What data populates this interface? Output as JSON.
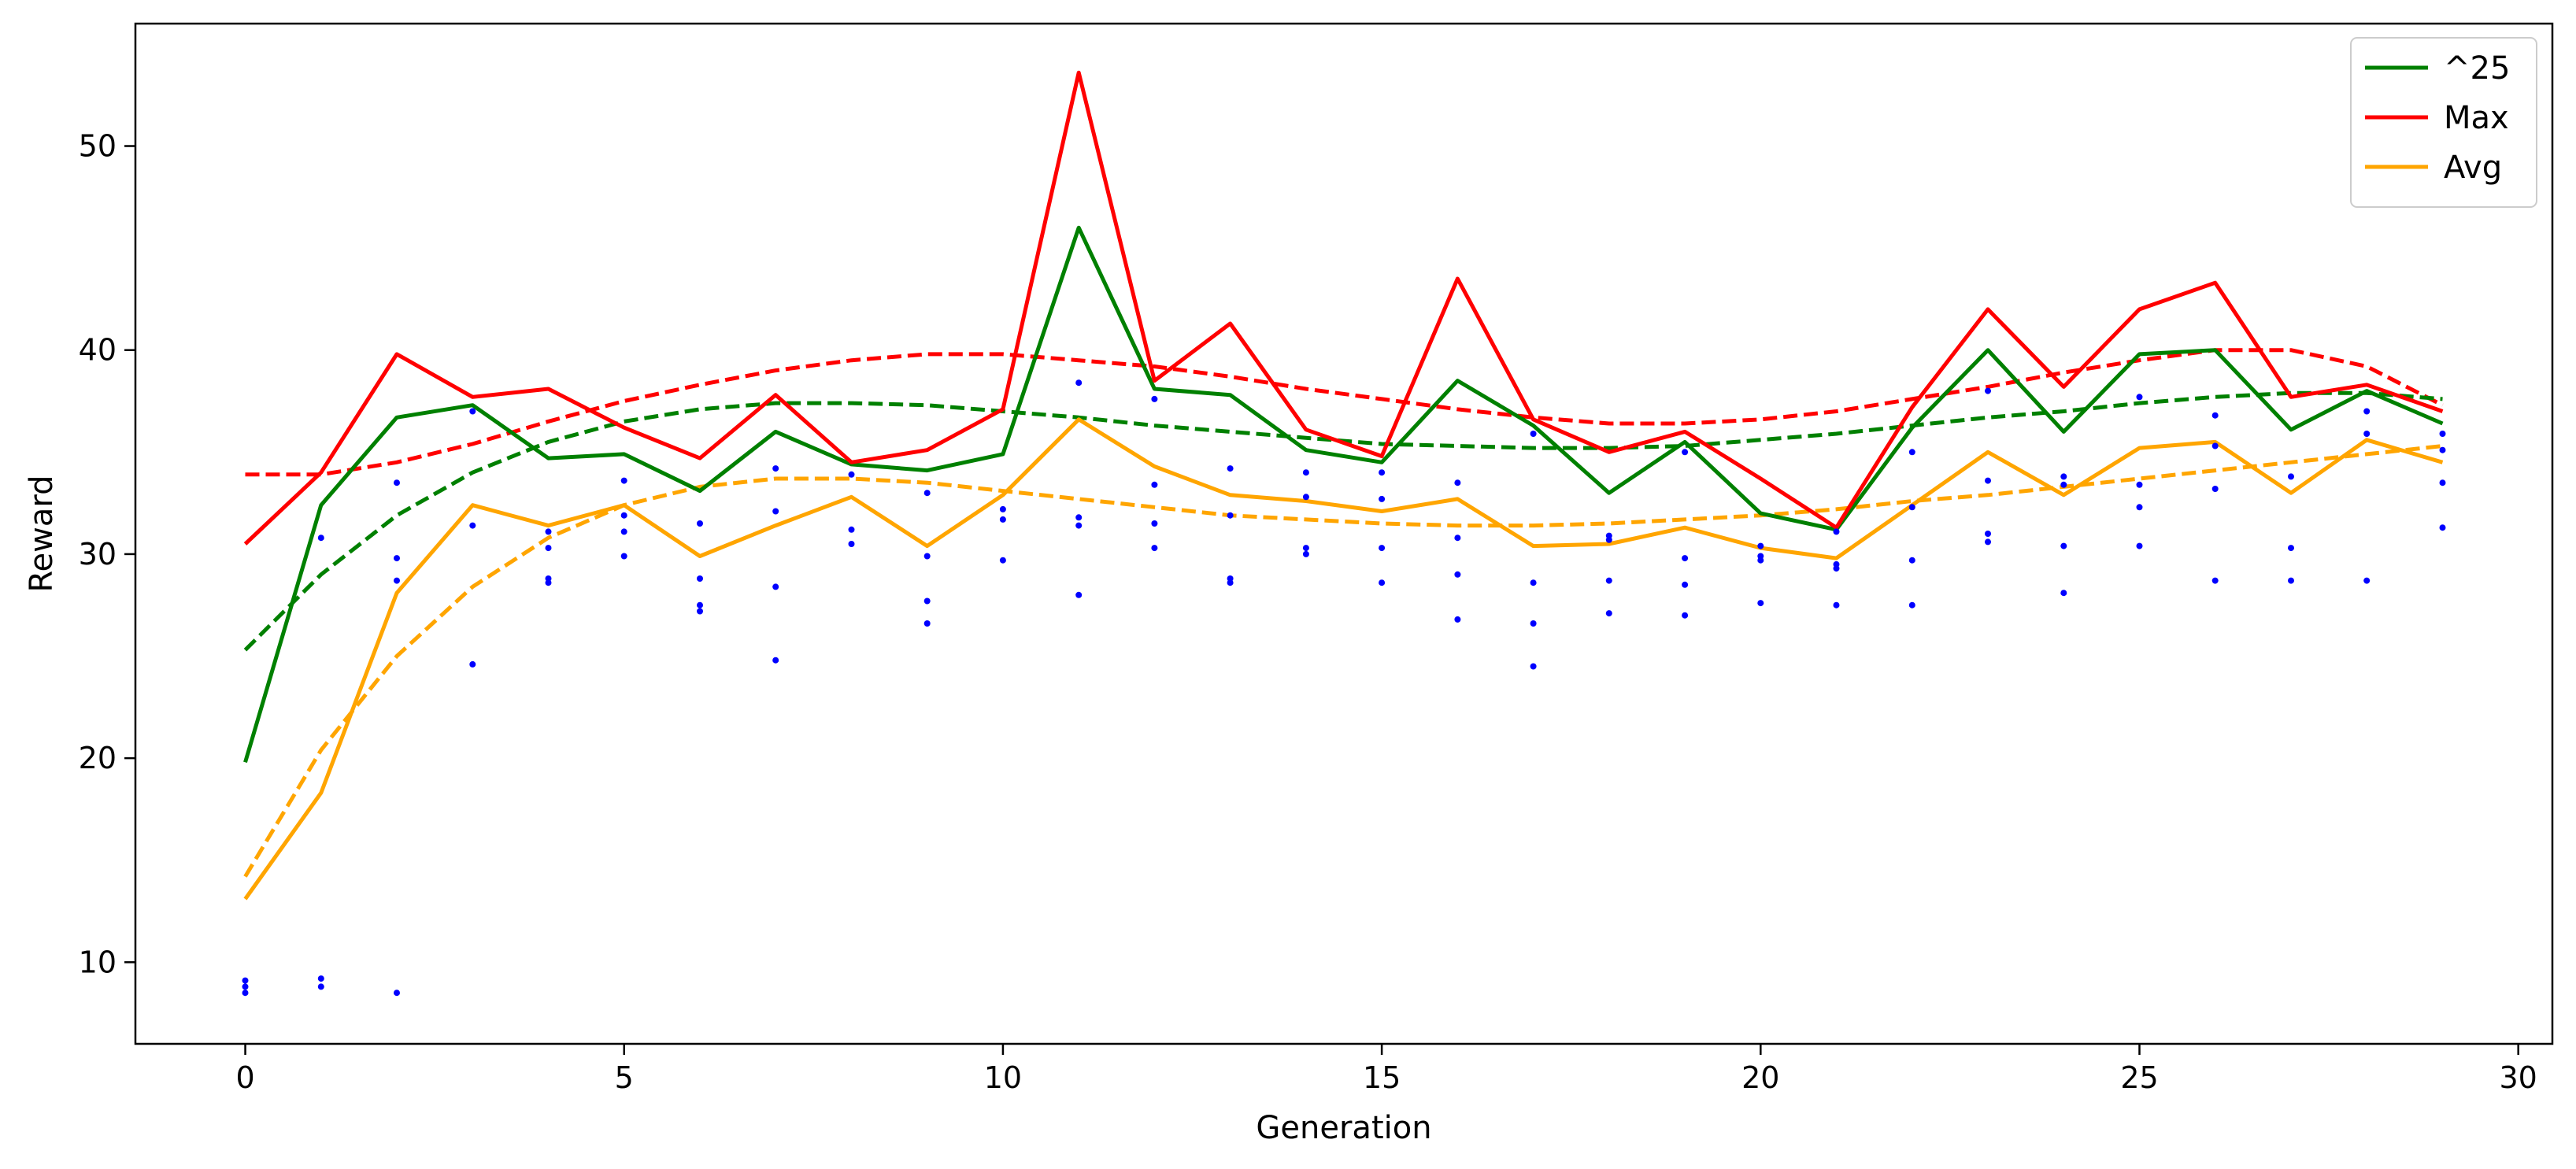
{
  "chart_data": {
    "type": "line",
    "xlabel": "Generation",
    "ylabel": "Reward",
    "xlim": [
      -1.45,
      30.45
    ],
    "ylim": [
      6.0,
      56.0
    ],
    "xticks": [
      0,
      5,
      10,
      15,
      20,
      25,
      30
    ],
    "yticks": [
      10,
      20,
      30,
      40,
      50
    ],
    "grid": false,
    "legend_position": "top-right",
    "x": [
      0,
      1,
      2,
      3,
      4,
      5,
      6,
      7,
      8,
      9,
      10,
      11,
      12,
      13,
      14,
      15,
      16,
      17,
      18,
      19,
      20,
      21,
      22,
      23,
      24,
      25,
      26,
      27,
      28,
      29
    ],
    "series": [
      {
        "name": "^25",
        "color": "#008000",
        "style": "solid",
        "values": [
          19.8,
          32.4,
          36.7,
          37.3,
          34.7,
          34.9,
          33.1,
          36.0,
          34.4,
          34.1,
          34.9,
          46.0,
          38.1,
          37.8,
          35.1,
          34.5,
          38.5,
          36.3,
          33.0,
          35.5,
          32.0,
          31.2,
          36.2,
          40.0,
          36.0,
          39.8,
          40.0,
          36.1,
          38.0,
          36.4
        ]
      },
      {
        "name": "Max",
        "color": "#ff0000",
        "style": "solid",
        "values": [
          30.5,
          34.0,
          39.8,
          37.7,
          38.1,
          36.2,
          34.7,
          37.8,
          34.5,
          35.1,
          37.1,
          53.6,
          38.5,
          41.3,
          36.1,
          34.8,
          43.5,
          36.6,
          35.0,
          36.0,
          33.7,
          31.3,
          37.2,
          42.0,
          38.2,
          42.0,
          43.3,
          37.7,
          38.3,
          37.0
        ]
      },
      {
        "name": "Avg",
        "color": "#ffa500",
        "style": "solid",
        "values": [
          13.1,
          18.3,
          28.1,
          32.4,
          31.4,
          32.4,
          29.9,
          31.4,
          32.8,
          30.4,
          32.9,
          36.6,
          34.3,
          32.9,
          32.6,
          32.1,
          32.7,
          30.4,
          30.5,
          31.3,
          30.3,
          29.8,
          32.4,
          35.0,
          32.9,
          35.2,
          35.5,
          33.0,
          35.6,
          34.5
        ]
      },
      {
        "name": "",
        "color": "#ff0000",
        "style": "dashed",
        "values": [
          33.9,
          33.9,
          34.5,
          35.4,
          36.5,
          37.5,
          38.3,
          39.0,
          39.5,
          39.8,
          39.8,
          39.5,
          39.2,
          38.7,
          38.1,
          37.6,
          37.1,
          36.7,
          36.4,
          36.4,
          36.6,
          37.0,
          37.6,
          38.2,
          38.9,
          39.5,
          40.0,
          40.0,
          39.2,
          37.3
        ]
      },
      {
        "name": "",
        "color": "#008000",
        "style": "dashed",
        "values": [
          25.3,
          29.0,
          31.9,
          34.0,
          35.5,
          36.5,
          37.1,
          37.4,
          37.4,
          37.3,
          37.0,
          36.7,
          36.3,
          36.0,
          35.7,
          35.4,
          35.3,
          35.2,
          35.2,
          35.3,
          35.6,
          35.9,
          36.3,
          36.7,
          37.0,
          37.4,
          37.7,
          37.9,
          37.9,
          37.6
        ]
      },
      {
        "name": "",
        "color": "#ffa500",
        "style": "dashed",
        "values": [
          14.2,
          20.4,
          25.0,
          28.4,
          30.8,
          32.4,
          33.3,
          33.7,
          33.7,
          33.5,
          33.1,
          32.7,
          32.3,
          31.9,
          31.7,
          31.5,
          31.4,
          31.4,
          31.5,
          31.7,
          31.9,
          32.2,
          32.6,
          32.9,
          33.3,
          33.7,
          34.1,
          34.5,
          34.9,
          35.3
        ]
      }
    ],
    "scatter": {
      "color": "#0000ff",
      "points": [
        [
          0,
          9.1
        ],
        [
          0,
          8.8
        ],
        [
          0,
          8.5
        ],
        [
          1,
          30.8
        ],
        [
          1,
          9.2
        ],
        [
          1,
          8.8
        ],
        [
          2,
          33.5
        ],
        [
          2,
          29.8
        ],
        [
          2,
          28.7
        ],
        [
          2,
          8.5
        ],
        [
          3,
          37.0
        ],
        [
          3,
          31.4
        ],
        [
          3,
          24.6
        ],
        [
          4,
          31.1
        ],
        [
          4,
          30.3
        ],
        [
          4,
          28.8
        ],
        [
          4,
          28.6
        ],
        [
          5,
          33.6
        ],
        [
          5,
          31.9
        ],
        [
          5,
          31.1
        ],
        [
          5,
          29.9
        ],
        [
          6,
          31.5
        ],
        [
          6,
          28.8
        ],
        [
          6,
          27.5
        ],
        [
          6,
          27.2
        ],
        [
          7,
          34.2
        ],
        [
          7,
          32.1
        ],
        [
          7,
          28.4
        ],
        [
          7,
          24.8
        ],
        [
          8,
          33.9
        ],
        [
          8,
          31.2
        ],
        [
          8,
          30.5
        ],
        [
          9,
          33.0
        ],
        [
          9,
          29.9
        ],
        [
          9,
          27.7
        ],
        [
          9,
          26.6
        ],
        [
          10,
          32.2
        ],
        [
          10,
          31.7
        ],
        [
          10,
          29.7
        ],
        [
          11,
          38.4
        ],
        [
          11,
          31.8
        ],
        [
          11,
          31.4
        ],
        [
          11,
          28.0
        ],
        [
          12,
          37.6
        ],
        [
          12,
          33.4
        ],
        [
          12,
          31.5
        ],
        [
          12,
          30.3
        ],
        [
          13,
          34.2
        ],
        [
          13,
          31.9
        ],
        [
          13,
          28.8
        ],
        [
          13,
          28.6
        ],
        [
          14,
          34.0
        ],
        [
          14,
          32.8
        ],
        [
          14,
          30.3
        ],
        [
          14,
          30.0
        ],
        [
          15,
          34.0
        ],
        [
          15,
          32.7
        ],
        [
          15,
          30.3
        ],
        [
          15,
          28.6
        ],
        [
          16,
          33.5
        ],
        [
          16,
          30.8
        ],
        [
          16,
          29.0
        ],
        [
          16,
          26.8
        ],
        [
          17,
          35.9
        ],
        [
          17,
          28.6
        ],
        [
          17,
          26.6
        ],
        [
          17,
          24.5
        ],
        [
          18,
          30.9
        ],
        [
          18,
          30.7
        ],
        [
          18,
          28.7
        ],
        [
          18,
          27.1
        ],
        [
          19,
          35.0
        ],
        [
          19,
          29.8
        ],
        [
          19,
          28.5
        ],
        [
          19,
          27.0
        ],
        [
          20,
          30.4
        ],
        [
          20,
          29.9
        ],
        [
          20,
          29.7
        ],
        [
          20,
          27.6
        ],
        [
          21,
          31.1
        ],
        [
          21,
          29.5
        ],
        [
          21,
          29.3
        ],
        [
          21,
          27.5
        ],
        [
          22,
          35.0
        ],
        [
          22,
          32.3
        ],
        [
          22,
          29.7
        ],
        [
          22,
          27.5
        ],
        [
          23,
          38.0
        ],
        [
          23,
          33.6
        ],
        [
          23,
          31.0
        ],
        [
          23,
          30.6
        ],
        [
          24,
          33.8
        ],
        [
          24,
          33.4
        ],
        [
          24,
          30.4
        ],
        [
          24,
          28.1
        ],
        [
          25,
          37.7
        ],
        [
          25,
          33.4
        ],
        [
          25,
          32.3
        ],
        [
          25,
          30.4
        ],
        [
          26,
          36.8
        ],
        [
          26,
          35.3
        ],
        [
          26,
          33.2
        ],
        [
          26,
          28.7
        ],
        [
          27,
          33.8
        ],
        [
          27,
          30.3
        ],
        [
          27,
          28.7
        ],
        [
          28,
          37.0
        ],
        [
          28,
          35.9
        ],
        [
          28,
          28.7
        ],
        [
          29,
          35.9
        ],
        [
          29,
          35.1
        ],
        [
          29,
          33.5
        ],
        [
          29,
          31.3
        ]
      ]
    }
  }
}
